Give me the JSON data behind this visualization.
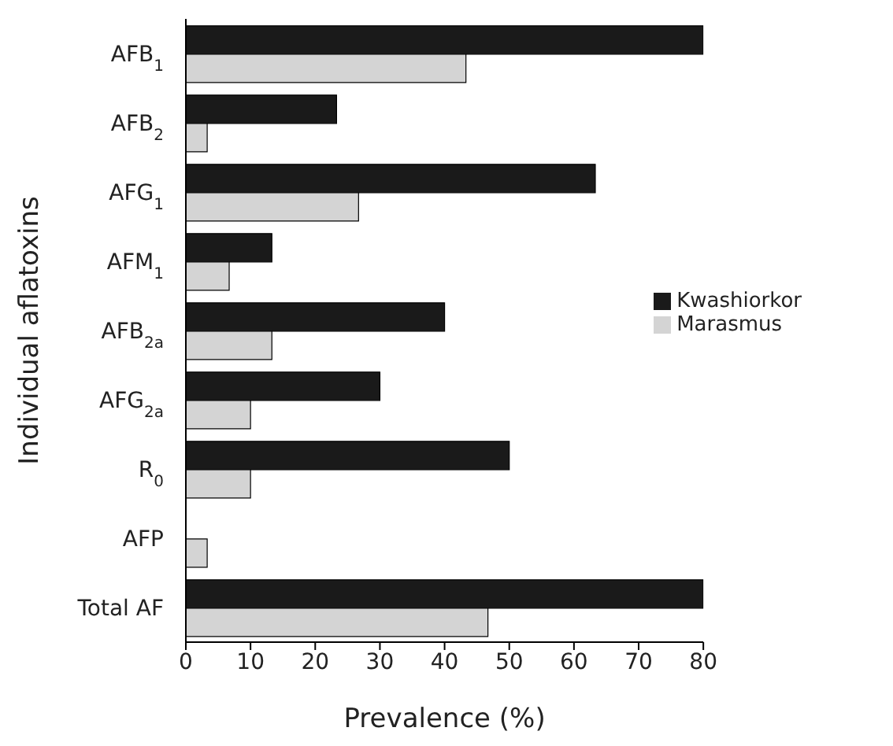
{
  "chart_data": {
    "type": "bar",
    "orientation": "horizontal",
    "xlabel": "Prevalence (%)",
    "ylabel": "Individual aflatoxins",
    "categories": [
      "AFB$_{1}$",
      "AFB$_{2}$",
      "AFG$_{1}$",
      "AFM$_{1}$",
      "AFB$_{2a}$",
      "AFG$_{2a}$",
      "R$_{0}$",
      "AFP",
      "Total AF"
    ],
    "series": [
      {
        "name": "Kwashiorkor",
        "color": "#1a1a1a",
        "values": [
          80,
          23.3,
          63.3,
          13.3,
          40,
          30,
          50,
          0,
          80
        ]
      },
      {
        "name": "Marasmus",
        "color": "#d4d4d4",
        "values": [
          43.3,
          3.3,
          26.7,
          6.7,
          13.3,
          10,
          10,
          3.3,
          46.7
        ]
      }
    ],
    "xlim": [
      0,
      80
    ],
    "xticks": [
      0,
      10,
      20,
      30,
      40,
      50,
      60,
      70,
      80
    ],
    "legend": "right"
  }
}
